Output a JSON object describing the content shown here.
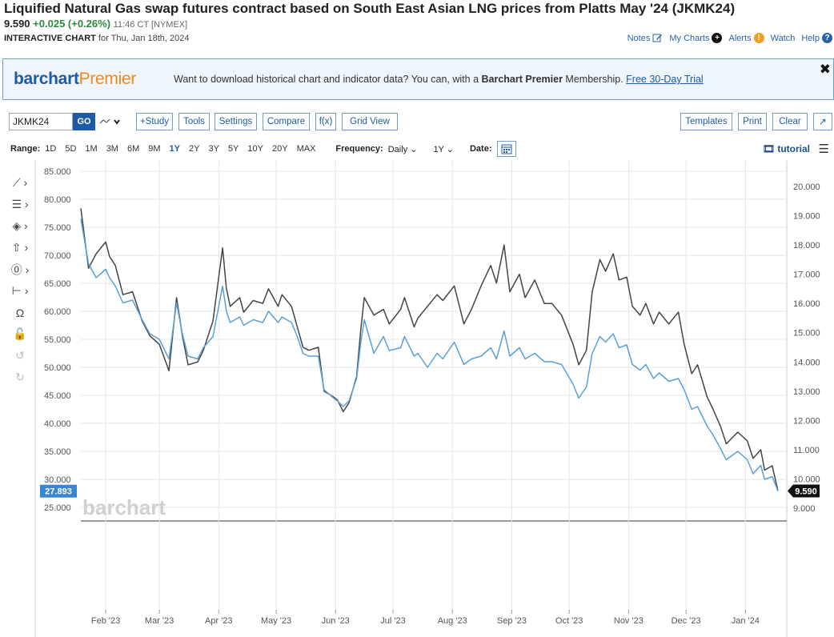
{
  "header": {
    "title": "Liquified Natural Gas swap futures contract based on South East Asian LNG prices from Platts May '24 (JKMK24)",
    "last": "9.590",
    "change": "+0.025 (+0.26%)",
    "time": "11:46 CT [NYMEX]",
    "interactive_label": "INTERACTIVE CHART",
    "for_date": "for Thu, Jan 18th, 2024"
  },
  "top_links": {
    "notes": "Notes",
    "my_charts": "My Charts",
    "alerts": "Alerts",
    "watch": "Watch",
    "help": "Help"
  },
  "banner": {
    "logo_main": "barchart",
    "logo_premier": "Premier",
    "message_pre": "Want to download historical chart and indicator data? You can, with a ",
    "message_brand": "Barchart Premier",
    "message_post": " Membership. ",
    "trial_link": "Free 30-Day Trial"
  },
  "toolbar": {
    "symbol": "JKMK24",
    "go": "GO",
    "study": "+Study",
    "tools": "Tools",
    "settings": "Settings",
    "compare": "Compare",
    "fx": "f(x)",
    "grid_view": "Grid View",
    "templates": "Templates",
    "print": "Print",
    "clear": "Clear"
  },
  "range_bar": {
    "range_label": "Range:",
    "ranges": [
      "1D",
      "5D",
      "1M",
      "3M",
      "6M",
      "9M",
      "1Y",
      "2Y",
      "3Y",
      "5Y",
      "10Y",
      "20Y",
      "MAX"
    ],
    "selected_range": "1Y",
    "frequency_label": "Frequency:",
    "frequency": "Daily",
    "period": "1Y",
    "date_label": "Date:",
    "tutorial": "tutorial"
  },
  "colors": {
    "accent": "#1e5aa8",
    "premier_orange": "#f08a1c",
    "positive": "#2a8a3e",
    "series_black": "#444444",
    "series_blue": "#5a9fd8"
  },
  "chart_data": {
    "type": "line",
    "title": "",
    "xlabel": "",
    "ylabel": "",
    "left_axis": {
      "ylim": [
        25,
        85
      ],
      "ticks": [
        "85.000",
        "80.000",
        "75.000",
        "70.000",
        "65.000",
        "60.000",
        "55.000",
        "50.000",
        "45.000",
        "40.000",
        "35.000",
        "30.000",
        "25.000"
      ]
    },
    "right_axis": {
      "ylim": [
        9,
        20.5
      ],
      "ticks": [
        "20.000",
        "19.000",
        "18.000",
        "17.000",
        "16.000",
        "15.000",
        "14.000",
        "13.000",
        "12.000",
        "11.000",
        "10.000",
        "9.000"
      ]
    },
    "x_ticks": [
      "Feb '23",
      "Mar '23",
      "Apr '23",
      "May '23",
      "Jun '23",
      "Jul '23",
      "Aug '23",
      "Sep '23",
      "Oct '23",
      "Nov '23",
      "Dec '23",
      "Jan '24"
    ],
    "x_range": [
      "2023-01-19",
      "2024-01-18"
    ],
    "grid": true,
    "watermark": "barchart",
    "last_label_left": "27.893",
    "last_label_right": "9.590",
    "series": [
      {
        "axis": "right",
        "color": "#444444",
        "points": [
          [
            "2023-01-19",
            19.25
          ],
          [
            "2023-01-23",
            17.2
          ],
          [
            "2023-01-27",
            17.7
          ],
          [
            "2023-02-01",
            18.1
          ],
          [
            "2023-02-03",
            17.6
          ],
          [
            "2023-02-06",
            17.3
          ],
          [
            "2023-02-10",
            16.3
          ],
          [
            "2023-02-15",
            16.4
          ],
          [
            "2023-02-20",
            15.4
          ],
          [
            "2023-02-24",
            14.9
          ],
          [
            "2023-03-01",
            14.6
          ],
          [
            "2023-03-06",
            13.7
          ],
          [
            "2023-03-10",
            16.2
          ],
          [
            "2023-03-13",
            14.9
          ],
          [
            "2023-03-16",
            13.9
          ],
          [
            "2023-03-21",
            14.0
          ],
          [
            "2023-03-24",
            14.4
          ],
          [
            "2023-03-29",
            15.4
          ],
          [
            "2023-04-03",
            17.9
          ],
          [
            "2023-04-05",
            16.5
          ],
          [
            "2023-04-07",
            15.9
          ],
          [
            "2023-04-12",
            16.2
          ],
          [
            "2023-04-14",
            15.7
          ],
          [
            "2023-04-19",
            16.1
          ],
          [
            "2023-04-24",
            16.0
          ],
          [
            "2023-04-27",
            16.5
          ],
          [
            "2023-05-02",
            15.9
          ],
          [
            "2023-05-04",
            16.3
          ],
          [
            "2023-05-09",
            15.9
          ],
          [
            "2023-05-12",
            15.2
          ],
          [
            "2023-05-15",
            14.5
          ],
          [
            "2023-05-18",
            14.4
          ],
          [
            "2023-05-23",
            14.5
          ],
          [
            "2023-05-26",
            13.0
          ],
          [
            "2023-05-31",
            12.8
          ],
          [
            "2023-06-02",
            12.7
          ],
          [
            "2023-06-05",
            12.3
          ],
          [
            "2023-06-08",
            12.6
          ],
          [
            "2023-06-12",
            13.5
          ],
          [
            "2023-06-14",
            15.0
          ],
          [
            "2023-06-16",
            16.2
          ],
          [
            "2023-06-21",
            15.6
          ],
          [
            "2023-06-26",
            15.8
          ],
          [
            "2023-06-29",
            15.3
          ],
          [
            "2023-07-05",
            15.8
          ],
          [
            "2023-07-07",
            16.2
          ],
          [
            "2023-07-12",
            15.2
          ],
          [
            "2023-07-14",
            15.5
          ],
          [
            "2023-07-19",
            15.9
          ],
          [
            "2023-07-24",
            16.3
          ],
          [
            "2023-07-27",
            16.1
          ],
          [
            "2023-08-02",
            16.6
          ],
          [
            "2023-08-07",
            15.3
          ],
          [
            "2023-08-11",
            15.8
          ],
          [
            "2023-08-16",
            16.6
          ],
          [
            "2023-08-21",
            17.3
          ],
          [
            "2023-08-24",
            16.7
          ],
          [
            "2023-08-28",
            18.0
          ],
          [
            "2023-08-31",
            16.4
          ],
          [
            "2023-09-05",
            17.0
          ],
          [
            "2023-09-08",
            16.2
          ],
          [
            "2023-09-13",
            16.8
          ],
          [
            "2023-09-18",
            16.0
          ],
          [
            "2023-09-22",
            16.0
          ],
          [
            "2023-09-27",
            15.6
          ],
          [
            "2023-10-03",
            14.6
          ],
          [
            "2023-10-06",
            13.9
          ],
          [
            "2023-10-10",
            14.4
          ],
          [
            "2023-10-13",
            16.4
          ],
          [
            "2023-10-17",
            17.5
          ],
          [
            "2023-10-20",
            17.1
          ],
          [
            "2023-10-24",
            17.7
          ],
          [
            "2023-10-27",
            16.8
          ],
          [
            "2023-10-31",
            16.9
          ],
          [
            "2023-11-03",
            15.9
          ],
          [
            "2023-11-07",
            15.6
          ],
          [
            "2023-11-10",
            16.0
          ],
          [
            "2023-11-14",
            15.3
          ],
          [
            "2023-11-17",
            15.7
          ],
          [
            "2023-11-22",
            15.3
          ],
          [
            "2023-11-27",
            15.7
          ],
          [
            "2023-11-30",
            14.6
          ],
          [
            "2023-12-04",
            13.6
          ],
          [
            "2023-12-07",
            13.9
          ],
          [
            "2023-12-12",
            12.8
          ],
          [
            "2023-12-15",
            12.4
          ],
          [
            "2023-12-19",
            11.8
          ],
          [
            "2023-12-22",
            11.2
          ],
          [
            "2023-12-28",
            11.6
          ],
          [
            "2024-01-02",
            11.3
          ],
          [
            "2024-01-05",
            10.7
          ],
          [
            "2024-01-09",
            11.0
          ],
          [
            "2024-01-11",
            10.3
          ],
          [
            "2024-01-15",
            10.45
          ],
          [
            "2024-01-18",
            9.59
          ]
        ]
      },
      {
        "axis": "left",
        "color": "#5a9fd8",
        "points": [
          [
            "2023-01-19",
            76.5
          ],
          [
            "2023-01-23",
            68.5
          ],
          [
            "2023-01-27",
            66.0
          ],
          [
            "2023-02-01",
            67.5
          ],
          [
            "2023-02-03",
            66.0
          ],
          [
            "2023-02-06",
            64.5
          ],
          [
            "2023-02-10",
            61.5
          ],
          [
            "2023-02-15",
            62.0
          ],
          [
            "2023-02-20",
            58.5
          ],
          [
            "2023-02-24",
            56.0
          ],
          [
            "2023-03-01",
            55.0
          ],
          [
            "2023-03-06",
            51.5
          ],
          [
            "2023-03-10",
            61.5
          ],
          [
            "2023-03-13",
            56.0
          ],
          [
            "2023-03-16",
            52.0
          ],
          [
            "2023-03-21",
            51.5
          ],
          [
            "2023-03-24",
            53.5
          ],
          [
            "2023-03-29",
            55.5
          ],
          [
            "2023-04-03",
            64.5
          ],
          [
            "2023-04-05",
            60.0
          ],
          [
            "2023-04-07",
            58.0
          ],
          [
            "2023-04-12",
            59.0
          ],
          [
            "2023-04-14",
            57.5
          ],
          [
            "2023-04-19",
            58.5
          ],
          [
            "2023-04-24",
            58.0
          ],
          [
            "2023-04-27",
            60.0
          ],
          [
            "2023-05-02",
            58.0
          ],
          [
            "2023-05-04",
            59.0
          ],
          [
            "2023-05-09",
            58.0
          ],
          [
            "2023-05-12",
            55.5
          ],
          [
            "2023-05-15",
            52.5
          ],
          [
            "2023-05-18",
            52.0
          ],
          [
            "2023-05-23",
            52.0
          ],
          [
            "2023-05-26",
            46.0
          ],
          [
            "2023-05-31",
            44.5
          ],
          [
            "2023-06-02",
            44.0
          ],
          [
            "2023-06-05",
            43.0
          ],
          [
            "2023-06-08",
            44.0
          ],
          [
            "2023-06-12",
            48.0
          ],
          [
            "2023-06-14",
            54.0
          ],
          [
            "2023-06-16",
            58.5
          ],
          [
            "2023-06-21",
            52.5
          ],
          [
            "2023-06-26",
            55.5
          ],
          [
            "2023-06-29",
            53.0
          ],
          [
            "2023-07-05",
            53.5
          ],
          [
            "2023-07-07",
            55.5
          ],
          [
            "2023-07-12",
            52.0
          ],
          [
            "2023-07-14",
            52.5
          ],
          [
            "2023-07-19",
            50.0
          ],
          [
            "2023-07-24",
            52.5
          ],
          [
            "2023-07-27",
            51.5
          ],
          [
            "2023-08-02",
            54.5
          ],
          [
            "2023-08-07",
            50.5
          ],
          [
            "2023-08-11",
            51.5
          ],
          [
            "2023-08-16",
            52.0
          ],
          [
            "2023-08-21",
            53.5
          ],
          [
            "2023-08-24",
            51.5
          ],
          [
            "2023-08-28",
            56.5
          ],
          [
            "2023-08-31",
            52.0
          ],
          [
            "2023-09-05",
            53.5
          ],
          [
            "2023-09-08",
            51.5
          ],
          [
            "2023-09-13",
            52.5
          ],
          [
            "2023-09-18",
            51.0
          ],
          [
            "2023-09-22",
            51.0
          ],
          [
            "2023-09-27",
            50.5
          ],
          [
            "2023-10-03",
            47.0
          ],
          [
            "2023-10-06",
            44.5
          ],
          [
            "2023-10-10",
            46.5
          ],
          [
            "2023-10-13",
            52.5
          ],
          [
            "2023-10-17",
            55.5
          ],
          [
            "2023-10-20",
            54.5
          ],
          [
            "2023-10-24",
            56.0
          ],
          [
            "2023-10-27",
            53.5
          ],
          [
            "2023-10-31",
            54.0
          ],
          [
            "2023-11-03",
            50.5
          ],
          [
            "2023-11-07",
            49.5
          ],
          [
            "2023-11-10",
            50.5
          ],
          [
            "2023-11-14",
            48.0
          ],
          [
            "2023-11-17",
            49.0
          ],
          [
            "2023-11-22",
            47.5
          ],
          [
            "2023-11-27",
            48.0
          ],
          [
            "2023-11-30",
            46.0
          ],
          [
            "2023-12-04",
            42.5
          ],
          [
            "2023-12-07",
            43.0
          ],
          [
            "2023-12-12",
            39.5
          ],
          [
            "2023-12-15",
            38.0
          ],
          [
            "2023-12-19",
            35.5
          ],
          [
            "2023-12-22",
            33.5
          ],
          [
            "2023-12-28",
            35.0
          ],
          [
            "2024-01-02",
            33.5
          ],
          [
            "2024-01-05",
            31.0
          ],
          [
            "2024-01-09",
            32.5
          ],
          [
            "2024-01-11",
            30.0
          ],
          [
            "2024-01-15",
            30.5
          ],
          [
            "2024-01-18",
            27.893
          ]
        ]
      }
    ]
  }
}
